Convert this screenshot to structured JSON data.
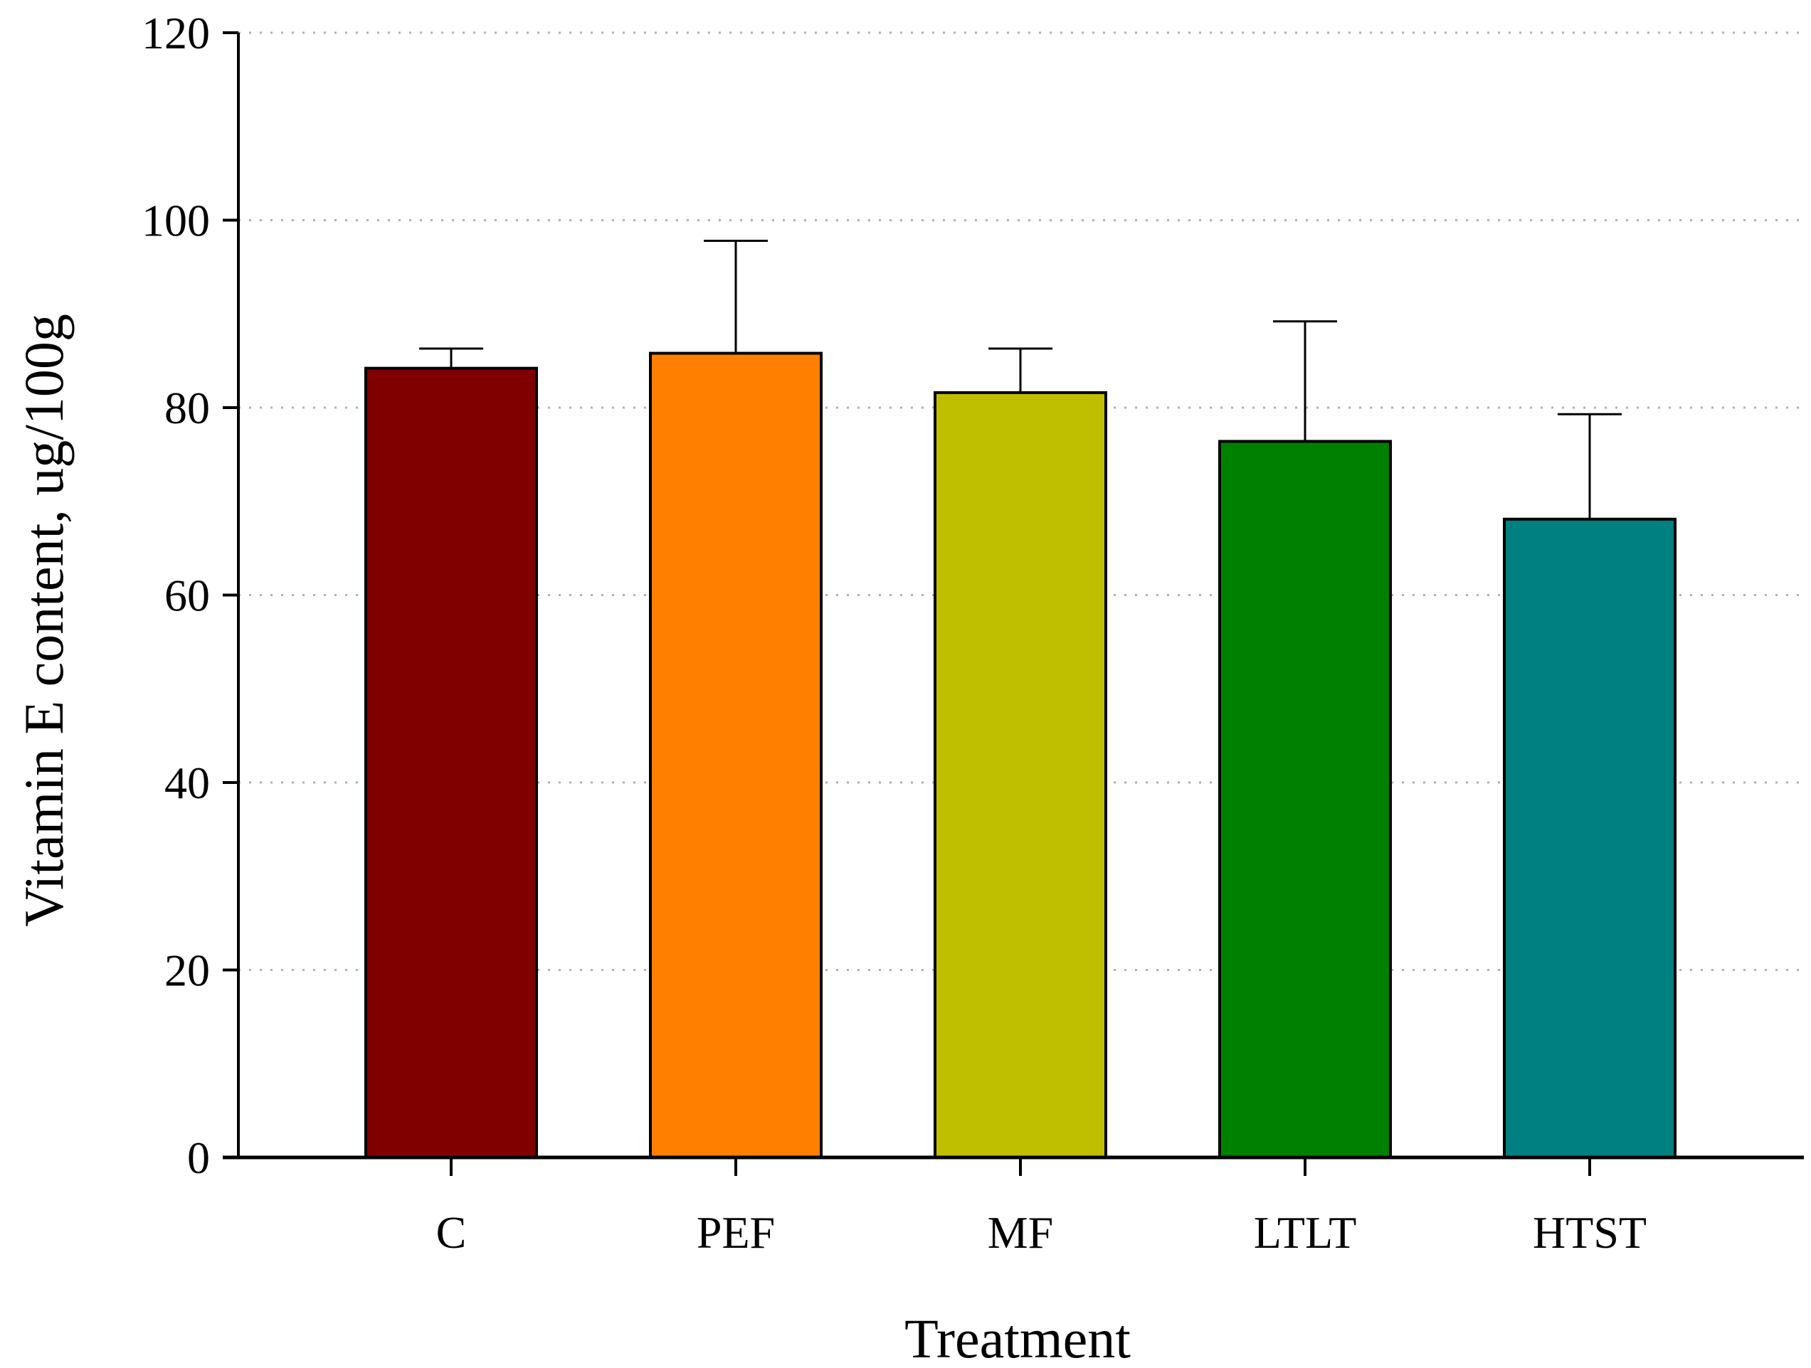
{
  "chart_data": {
    "type": "bar",
    "title": "",
    "xlabel": "Treatment",
    "ylabel": "Vitamin E content, ug/100g",
    "categories": [
      "C",
      "PEF",
      "MF",
      "LTLT",
      "HTST"
    ],
    "values": [
      84.2,
      85.8,
      81.6,
      76.4,
      68.1
    ],
    "error_upper": [
      2.1,
      12.0,
      4.7,
      12.8,
      11.2
    ],
    "colors": [
      "#800000",
      "#FF8000",
      "#BFBF00",
      "#008000",
      "#008080"
    ],
    "ylim": [
      0,
      120
    ],
    "yticks": [
      0,
      20,
      40,
      60,
      80,
      100,
      120
    ],
    "ytick_labels": [
      "0",
      "20",
      "40",
      "60",
      "80",
      "100",
      "120"
    ],
    "grid": true,
    "grid_style": "dotted"
  }
}
